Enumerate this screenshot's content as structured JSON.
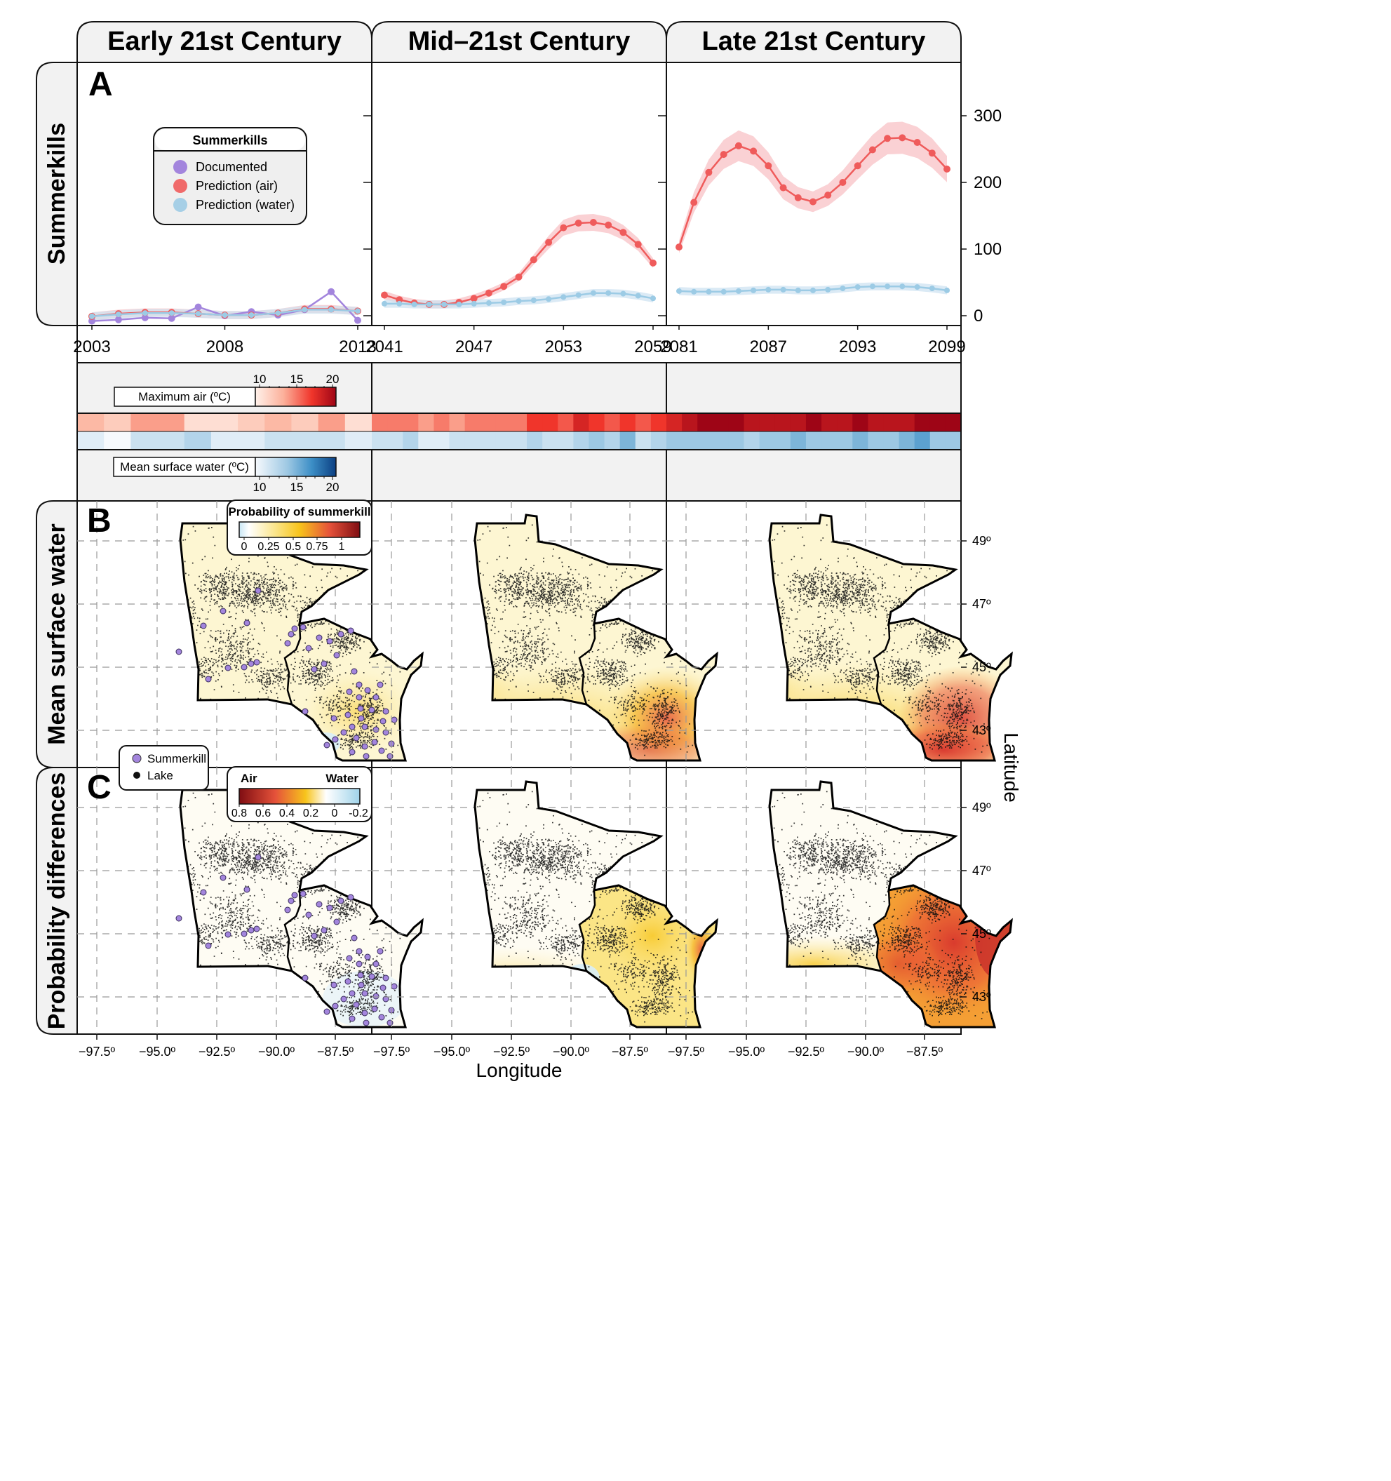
{
  "columns": [
    {
      "title": "Early 21st Century"
    },
    {
      "title": "Mid–21st Century"
    },
    {
      "title": "Late 21st Century"
    }
  ],
  "rows": [
    {
      "title": "Summerkills"
    },
    {
      "title": "Mean surface water"
    },
    {
      "title": "Probability differences"
    }
  ],
  "panel_letters": [
    "A",
    "B",
    "C"
  ],
  "axes": {
    "x_title": "Longitude",
    "y_title": "Latitude",
    "lon_ticks": [
      "−97.5º",
      "−95.0º",
      "−92.5º",
      "−90.0º",
      "−87.5º"
    ],
    "lat_ticks": [
      "49º",
      "47º",
      "45º",
      "43º"
    ],
    "summerkill_y_ticks": [
      "300",
      "200",
      "100",
      "0"
    ]
  },
  "legend_summerkills": {
    "title": "Summerkills",
    "items": [
      {
        "label": "Documented",
        "color": "#a385dd"
      },
      {
        "label": "Prediction (air)",
        "color": "#f06a6a"
      },
      {
        "label": "Prediction (water)",
        "color": "#a6cfe6"
      }
    ]
  },
  "temp_scales": {
    "air": {
      "label": "Maximum air (ºC)",
      "ticks": [
        "10",
        "15",
        "20"
      ]
    },
    "water": {
      "label": "Mean surface water (ºC)",
      "ticks": [
        "10",
        "15",
        "20"
      ]
    }
  },
  "legend_probability": {
    "title": "Probability of summerkill",
    "ticks": [
      "0",
      "0.25",
      "0.5",
      "0.75",
      "1"
    ]
  },
  "legend_difference": {
    "left_label": "Air",
    "right_label": "Water",
    "ticks": [
      "0.8",
      "0.6",
      "0.4",
      "0.2",
      "0",
      "-0.2"
    ]
  },
  "legend_points": {
    "items": [
      {
        "label": "Summerkill",
        "color": "#a385dd"
      },
      {
        "label": "Lake",
        "color": "#111111"
      }
    ]
  },
  "chart_data": [
    {
      "type": "line",
      "title": "Summerkills — Early 21st Century",
      "x_ticks": [
        "2003",
        "2008",
        "2013"
      ],
      "x": [
        2003,
        2004,
        2005,
        2006,
        2007,
        2008,
        2009,
        2010,
        2011,
        2012,
        2013
      ],
      "ylim": [
        0,
        350
      ],
      "series": [
        {
          "name": "Documented",
          "values": [
            -8,
            -6,
            -3,
            -4,
            13,
            0,
            6,
            1,
            9,
            36,
            -7
          ]
        },
        {
          "name": "Prediction (air)",
          "values": [
            -1,
            3,
            5,
            5,
            3,
            1,
            1,
            4,
            10,
            10,
            7
          ]
        },
        {
          "name": "Prediction (water)",
          "values": [
            -1,
            2,
            4,
            4,
            3,
            1,
            1,
            4,
            9,
            9,
            7
          ]
        }
      ]
    },
    {
      "type": "line",
      "title": "Summerkills — Mid–21st Century",
      "x_ticks": [
        "2041",
        "2047",
        "2053",
        "2059"
      ],
      "x": [
        2041,
        2042,
        2043,
        2044,
        2045,
        2046,
        2047,
        2048,
        2049,
        2050,
        2051,
        2052,
        2053,
        2054,
        2055,
        2056,
        2057,
        2058,
        2059
      ],
      "ylim": [
        0,
        350
      ],
      "series": [
        {
          "name": "Prediction (air)",
          "values": [
            31,
            24,
            19,
            17,
            17,
            20,
            26,
            34,
            44,
            58,
            84,
            110,
            132,
            139,
            140,
            136,
            125,
            107,
            79
          ]
        },
        {
          "name": "Prediction (water)",
          "values": [
            18,
            18,
            17,
            17,
            17,
            17,
            18,
            19,
            20,
            22,
            23,
            25,
            28,
            31,
            34,
            34,
            33,
            30,
            26
          ]
        }
      ]
    },
    {
      "type": "line",
      "title": "Summerkills — Late 21st Century",
      "x_ticks": [
        "2081",
        "2087",
        "2093",
        "2099"
      ],
      "x": [
        2081,
        2082,
        2083,
        2084,
        2085,
        2086,
        2087,
        2088,
        2089,
        2090,
        2091,
        2092,
        2093,
        2094,
        2095,
        2096,
        2097,
        2098,
        2099
      ],
      "ylim": [
        0,
        350
      ],
      "series": [
        {
          "name": "Prediction (air)",
          "values": [
            103,
            170,
            215,
            242,
            255,
            247,
            225,
            192,
            177,
            171,
            181,
            200,
            225,
            249,
            266,
            267,
            260,
            244,
            220
          ]
        },
        {
          "name": "Prediction (water)",
          "values": [
            37,
            36,
            36,
            36,
            37,
            38,
            39,
            39,
            38,
            38,
            39,
            41,
            43,
            44,
            44,
            44,
            43,
            41,
            38
          ]
        }
      ]
    },
    {
      "type": "heatmap",
      "title": "Maximum air (ºC) by year",
      "scale": [
        10,
        20
      ],
      "early": [
        13,
        12,
        14,
        14,
        11,
        11,
        12,
        13,
        12,
        14,
        11
      ],
      "mid": [
        15,
        15,
        15,
        14,
        15,
        14,
        15,
        15,
        15,
        15,
        17,
        17,
        16,
        18,
        17,
        16,
        17,
        16,
        17
      ],
      "late": [
        18,
        19,
        20,
        20,
        21,
        19,
        19,
        19,
        19,
        20,
        19,
        19,
        20,
        19,
        19,
        19,
        20,
        21,
        20
      ]
    },
    {
      "type": "heatmap",
      "title": "Mean surface water (ºC) by year",
      "scale": [
        10,
        20
      ],
      "early": [
        11,
        10,
        12,
        12,
        13,
        11,
        11,
        12,
        12,
        12,
        11
      ],
      "mid": [
        12,
        12,
        13,
        11,
        11,
        12,
        12,
        12,
        12,
        12,
        13,
        12,
        12,
        13,
        14,
        13,
        15,
        12,
        13
      ],
      "late": [
        14,
        14,
        14,
        14,
        14,
        13,
        14,
        14,
        15,
        14,
        14,
        14,
        15,
        14,
        14,
        15,
        16,
        14,
        14
      ]
    }
  ]
}
